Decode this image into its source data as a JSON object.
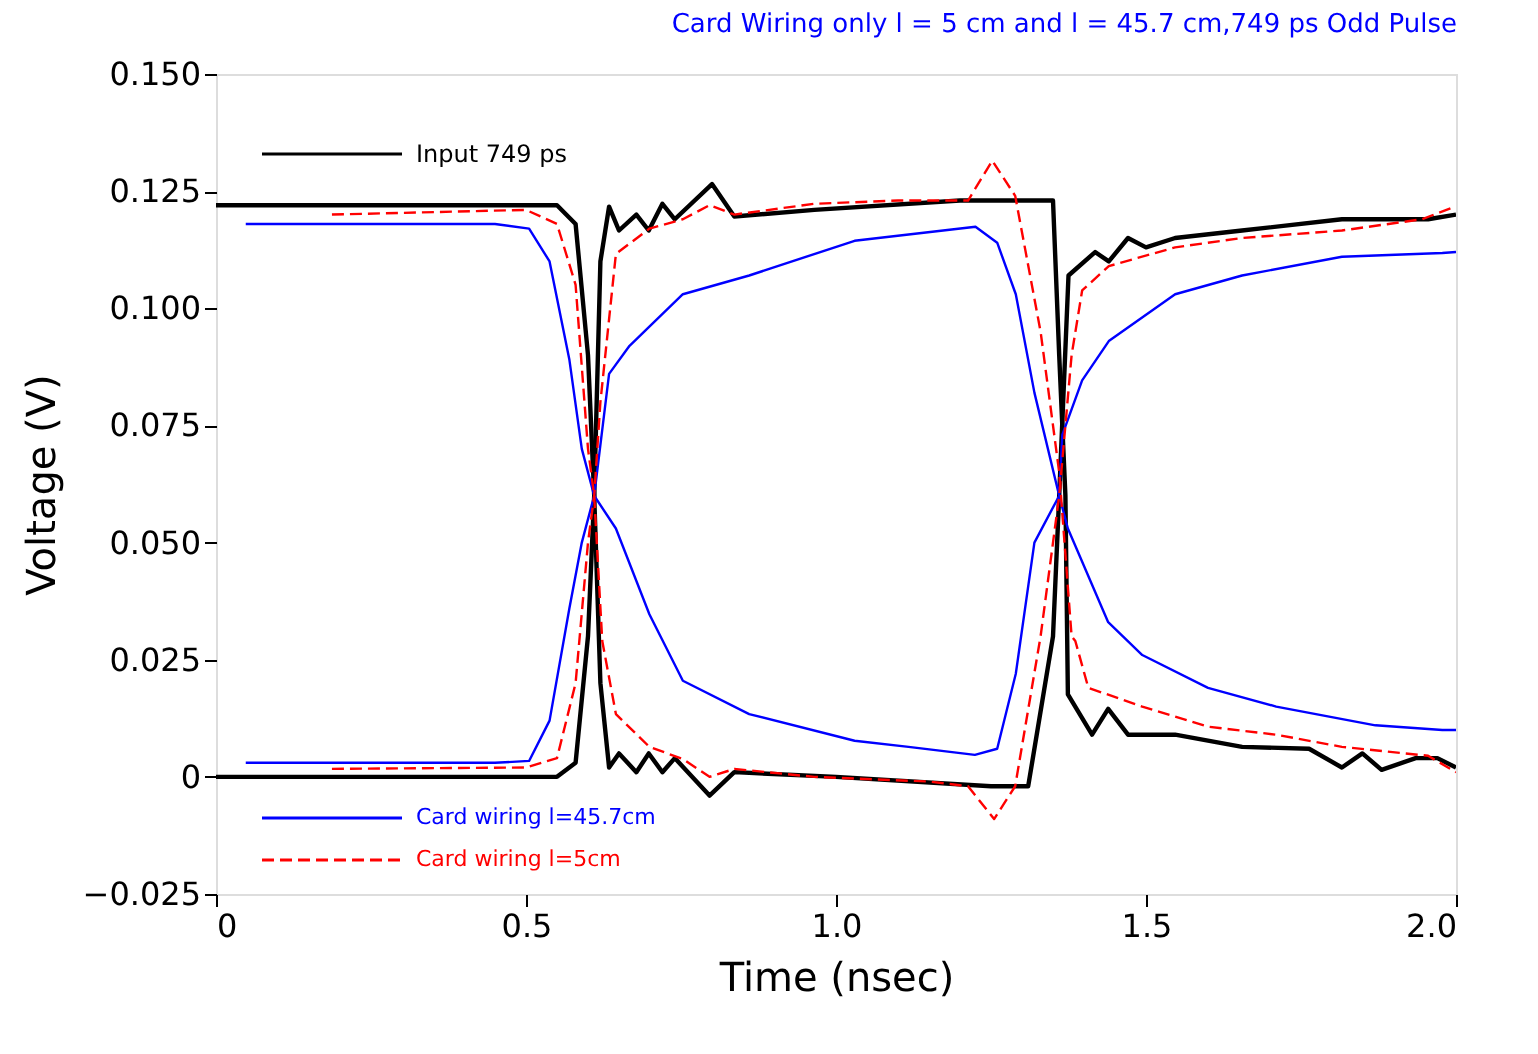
{
  "chart_data": {
    "type": "line",
    "title": "Card Wiring only l = 5 cm and l = 45.7 cm,749 ps Odd Pulse",
    "xlabel": "Time (nsec)",
    "ylabel": "Voltage (V)",
    "xlim": [
      0,
      2.0
    ],
    "ylim": [
      -0.025,
      0.15
    ],
    "xticks": [
      0,
      0.5,
      {
        "value": 1,
        "label": "1.0"
      },
      1.5,
      {
        "value": 2,
        "label": "2.0"
      }
    ],
    "yticks": [
      {
        "value": -0.025,
        "label": "−0.025"
      },
      0,
      0.025,
      {
        "value": 0.05,
        "label": "0.050"
      },
      0.075,
      {
        "value": 0.1,
        "label": "0.100"
      },
      0.125,
      {
        "value": 0.15,
        "label": "0.150"
      }
    ],
    "grid": false,
    "legend": "left",
    "series": [
      {
        "name": "Input 749 ps",
        "color": "#000000",
        "line_style": "solid",
        "x": [
          0,
          0.55,
          0.58,
          0.6,
          0.61,
          0.62,
          0.634,
          0.65,
          0.678,
          0.698,
          0.72,
          0.74,
          0.796,
          0.836,
          1.0,
          1.25,
          1.31,
          1.35,
          1.36,
          1.375,
          1.418,
          1.44,
          1.471,
          1.5,
          1.547,
          1.655,
          1.816,
          1.955,
          2.0
        ],
        "values": [
          0.122,
          0.122,
          0.118,
          0.09,
          0.06,
          0.02,
          0.002,
          0.005,
          0.001,
          0.005,
          0.001,
          0.004,
          -0.004,
          0.001,
          0.0,
          -0.002,
          -0.002,
          0.03,
          0.06,
          0.107,
          0.112,
          0.11,
          0.115,
          0.113,
          0.115,
          0.1166,
          0.119,
          0.119,
          0.12
        ]
      },
      {
        "color": "#000000",
        "line_style": "solid",
        "x": [
          0,
          0.55,
          0.58,
          0.6,
          0.61,
          0.62,
          0.634,
          0.65,
          0.678,
          0.698,
          0.72,
          0.74,
          0.8,
          0.836,
          0.965,
          1.2,
          1.35,
          1.36,
          1.37,
          1.374,
          1.413,
          1.439,
          1.471,
          1.547,
          1.655,
          1.763,
          1.816,
          1.849,
          1.88,
          1.935,
          1.97,
          2.0
        ],
        "values": [
          0.0,
          0.0,
          0.003,
          0.03,
          0.06,
          0.11,
          0.1217,
          0.1166,
          0.12,
          0.1166,
          0.1223,
          0.119,
          0.1265,
          0.1196,
          0.121,
          0.123,
          0.123,
          0.09,
          0.06,
          0.0176,
          0.009,
          0.0145,
          0.009,
          0.009,
          0.0064,
          0.006,
          0.002,
          0.005,
          0.0015,
          0.004,
          0.004,
          0.002
        ]
      },
      {
        "name": "Card wiring l=45.7cm",
        "color": "#0000ff",
        "line_style": "solid",
        "x": [
          0.048,
          0.45,
          0.505,
          0.538,
          0.57,
          0.59,
          0.61,
          0.645,
          0.699,
          0.753,
          0.86,
          1.03,
          1.117,
          1.224,
          1.26,
          1.29,
          1.32,
          1.36,
          1.374,
          1.439,
          1.494,
          1.6,
          1.71,
          1.87,
          1.978,
          2.0
        ],
        "values": [
          0.003,
          0.003,
          0.0034,
          0.012,
          0.036,
          0.05,
          0.06,
          0.053,
          0.0347,
          0.0205,
          0.0134,
          0.0077,
          0.0064,
          0.0047,
          0.006,
          0.022,
          0.05,
          0.06,
          0.053,
          0.033,
          0.026,
          0.019,
          0.015,
          0.011,
          0.01,
          0.01
        ]
      },
      {
        "color": "#0000ff",
        "line_style": "solid",
        "x": [
          0.048,
          0.45,
          0.505,
          0.538,
          0.57,
          0.59,
          0.61,
          0.634,
          0.667,
          0.753,
          0.86,
          1.03,
          1.225,
          1.26,
          1.29,
          1.32,
          1.36,
          1.365,
          1.397,
          1.44,
          1.547,
          1.655,
          1.816,
          1.978,
          2.0
        ],
        "values": [
          0.118,
          0.118,
          0.117,
          0.11,
          0.089,
          0.07,
          0.06,
          0.086,
          0.092,
          0.103,
          0.107,
          0.1144,
          0.1174,
          0.114,
          0.103,
          0.082,
          0.06,
          0.073,
          0.0846,
          0.093,
          0.103,
          0.107,
          0.111,
          0.1118,
          0.112
        ]
      },
      {
        "name": "Card wiring l=5cm",
        "color": "#ff0000",
        "line_style": "dashed",
        "x": [
          0.187,
          0.5,
          0.55,
          0.58,
          0.6,
          0.61,
          0.623,
          0.645,
          0.699,
          0.753,
          0.796,
          0.836,
          0.965,
          1.15,
          1.213,
          1.255,
          1.289,
          1.33,
          1.36,
          1.38,
          1.397,
          1.44,
          1.547,
          1.655,
          1.816,
          1.945,
          2.0
        ],
        "values": [
          0.12,
          0.121,
          0.118,
          0.105,
          0.07,
          0.06,
          0.029,
          0.0134,
          0.0064,
          0.0038,
          0.0,
          0.0017,
          0.0,
          -0.001,
          -0.002,
          -0.009,
          -0.002,
          0.03,
          0.06,
          0.09,
          0.1038,
          0.109,
          0.113,
          0.115,
          0.1166,
          0.119,
          0.1218
        ]
      },
      {
        "color": "#ff0000",
        "line_style": "dashed",
        "x": [
          0.187,
          0.5,
          0.55,
          0.58,
          0.6,
          0.61,
          0.62,
          0.645,
          0.699,
          0.753,
          0.796,
          0.836,
          0.965,
          1.1,
          1.213,
          1.252,
          1.289,
          1.33,
          1.36,
          1.38,
          1.386,
          1.407,
          1.494,
          1.6,
          1.71,
          1.816,
          1.955,
          2.0
        ],
        "values": [
          0.0017,
          0.002,
          0.004,
          0.02,
          0.05,
          0.06,
          0.08,
          0.1116,
          0.117,
          0.119,
          0.122,
          0.12,
          0.1223,
          0.123,
          0.123,
          0.1315,
          0.124,
          0.095,
          0.065,
          0.03,
          0.029,
          0.019,
          0.015,
          0.0107,
          0.009,
          0.0064,
          0.0045,
          0.001
        ]
      }
    ]
  }
}
